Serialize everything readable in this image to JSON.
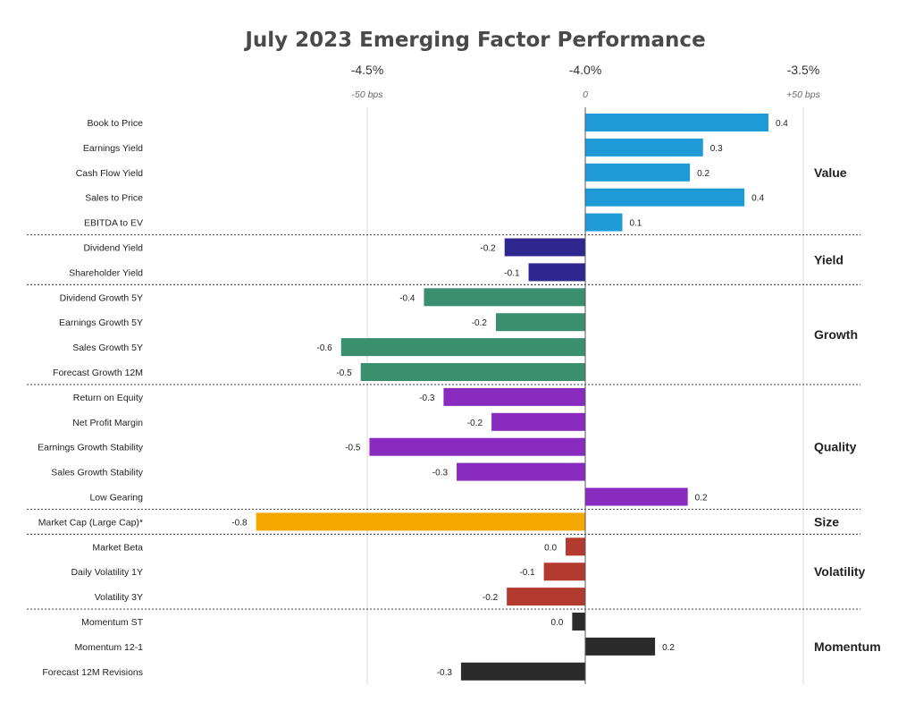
{
  "chart_data": {
    "type": "bar",
    "orientation": "horizontal",
    "title": "July 2023 Emerging Factor Performance",
    "top_axis_ticks": [
      {
        "value": -0.5,
        "label": "-4.5%",
        "sublabel": "-50 bps"
      },
      {
        "value": 0,
        "label": "-4.0%",
        "sublabel": "0"
      },
      {
        "value": 0.5,
        "label": "-3.5%",
        "sublabel": "+50 bps"
      }
    ],
    "xlim": [
      -0.75,
      0.5
    ],
    "grid": true,
    "groups": [
      {
        "name": "Value",
        "color": "#1E9BD7",
        "items": [
          {
            "label": "Book to Price",
            "value": 0.42,
            "value_label": "0.4"
          },
          {
            "label": "Earnings Yield",
            "value": 0.27,
            "value_label": "0.3"
          },
          {
            "label": "Cash Flow Yield",
            "value": 0.24,
            "value_label": "0.2"
          },
          {
            "label": "Sales to Price",
            "value": 0.365,
            "value_label": "0.4"
          },
          {
            "label": "EBITDA to EV",
            "value": 0.085,
            "value_label": "0.1"
          }
        ]
      },
      {
        "name": "Yield",
        "color": "#30268F",
        "items": [
          {
            "label": "Dividend Yield",
            "value": -0.185,
            "value_label": "-0.2"
          },
          {
            "label": "Shareholder Yield",
            "value": -0.13,
            "value_label": "-0.1"
          }
        ]
      },
      {
        "name": "Growth",
        "color": "#3A8F6E",
        "items": [
          {
            "label": "Dividend Growth 5Y",
            "value": -0.37,
            "value_label": "-0.4"
          },
          {
            "label": "Earnings Growth 5Y",
            "value": -0.205,
            "value_label": "-0.2"
          },
          {
            "label": "Sales Growth 5Y",
            "value": -0.56,
            "value_label": "-0.6"
          },
          {
            "label": "Forecast Growth 12M",
            "value": -0.515,
            "value_label": "-0.5"
          }
        ]
      },
      {
        "name": "Quality",
        "color": "#8A2BBF",
        "items": [
          {
            "label": "Return on Equity",
            "value": -0.325,
            "value_label": "-0.3"
          },
          {
            "label": "Net Profit Margin",
            "value": -0.215,
            "value_label": "-0.2"
          },
          {
            "label": "Earnings Growth Stability",
            "value": -0.495,
            "value_label": "-0.5"
          },
          {
            "label": "Sales Growth Stability",
            "value": -0.295,
            "value_label": "-0.3"
          },
          {
            "label": "Low Gearing",
            "value": 0.235,
            "value_label": "0.2"
          }
        ]
      },
      {
        "name": "Size",
        "color": "#F5A800",
        "items": [
          {
            "label": "Market Cap (Large Cap)*",
            "value": -0.755,
            "value_label": "-0.8"
          }
        ]
      },
      {
        "name": "Volatility",
        "color": "#B23A2E",
        "items": [
          {
            "label": "Market Beta",
            "value": -0.045,
            "value_label": "0.0"
          },
          {
            "label": "Daily Volatility 1Y",
            "value": -0.095,
            "value_label": "-0.1"
          },
          {
            "label": "Volatility 3Y",
            "value": -0.18,
            "value_label": "-0.2"
          }
        ]
      },
      {
        "name": "Momentum",
        "color": "#2B2B2B",
        "items": [
          {
            "label": "Momentum ST",
            "value": -0.03,
            "value_label": "0.0"
          },
          {
            "label": "Momentum 12-1",
            "value": 0.16,
            "value_label": "0.2"
          },
          {
            "label": "Forecast 12M Revisions",
            "value": -0.285,
            "value_label": "-0.3"
          }
        ]
      }
    ]
  }
}
